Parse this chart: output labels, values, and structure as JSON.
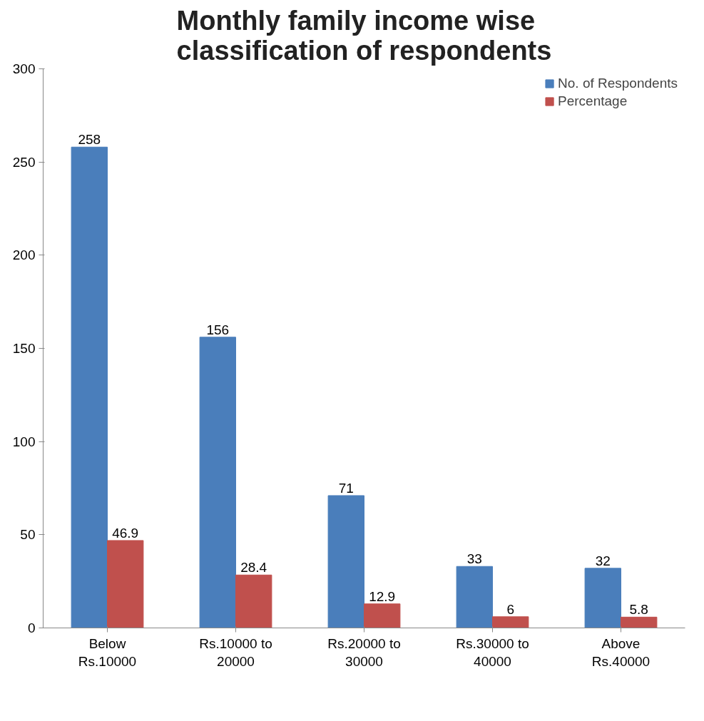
{
  "chart_data": {
    "type": "bar",
    "title": "Monthly family income wise classification of respondents",
    "categories": [
      "Below Rs.10000",
      "Rs.10000 to 20000",
      "Rs.20000 to 30000",
      "Rs.30000 to 40000",
      "Above Rs.40000"
    ],
    "series": [
      {
        "name": "No. of Respondents",
        "color": "#4a7ebb",
        "values": [
          258,
          156,
          71,
          33,
          32
        ]
      },
      {
        "name": "Percentage",
        "color": "#c0504d",
        "values": [
          46.9,
          28.4,
          12.9,
          6,
          5.8
        ]
      }
    ],
    "ylim": [
      0,
      300
    ],
    "yticks": [
      0,
      50,
      100,
      150,
      200,
      250,
      300
    ],
    "grid": false,
    "legend": "top right",
    "data_labels": true
  }
}
